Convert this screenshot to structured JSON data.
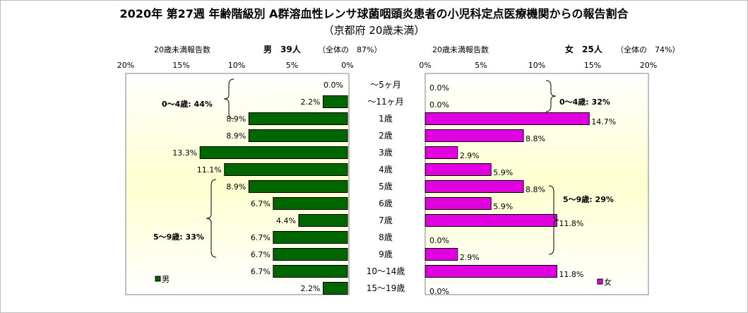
{
  "title": "2020年 第27週 年齢階級別 A群溶血性レンサ球菌咽頭炎患者の小児科定点医療機関からの報告割合",
  "subtitle": "（京都府 20歳未満）",
  "male_header": {
    "count_label": "20歳未満報告数",
    "sex_count": "男　39人",
    "share": "（全体の　87%）"
  },
  "female_header": {
    "count_label": "20歳未満報告数",
    "sex_count": "女　25人",
    "share": "（全体の　74%）"
  },
  "colors": {
    "male": "#006600",
    "female": "#e000e0",
    "plot_center": "#ffffd0",
    "plot_edge": "#ffffff"
  },
  "chart_data": {
    "type": "bar",
    "orientation": "horizontal",
    "categories": [
      "～5ヶ月",
      "～11ヶ月",
      "1歳",
      "2歳",
      "3歳",
      "4歳",
      "5歳",
      "6歳",
      "7歳",
      "8歳",
      "9歳",
      "10～14歳",
      "15～19歳"
    ],
    "series": [
      {
        "name": "男",
        "values": [
          0.0,
          2.2,
          8.9,
          8.9,
          13.3,
          11.1,
          8.9,
          6.7,
          4.4,
          6.7,
          6.7,
          6.7,
          2.2
        ],
        "labels": [
          "0.0%",
          "2.2%",
          "8.9%",
          "8.9%",
          "13.3%",
          "11.1%",
          "8.9%",
          "6.7%",
          "4.4%",
          "6.7%",
          "6.7%",
          "6.7%",
          "2.2%"
        ]
      },
      {
        "name": "女",
        "values": [
          0.0,
          0.0,
          14.7,
          8.8,
          2.9,
          5.9,
          8.8,
          5.9,
          11.8,
          0.0,
          2.9,
          11.8,
          0.0
        ],
        "labels": [
          "0.0%",
          "0.0%",
          "14.7%",
          "8.8%",
          "2.9%",
          "5.9%",
          "8.8%",
          "5.9%",
          "11.8%",
          "0.0%",
          "2.9%",
          "11.8%",
          "0.0%"
        ]
      }
    ],
    "male_axis_ticks": [
      "20%",
      "15%",
      "10%",
      "5%",
      "0%"
    ],
    "female_axis_ticks": [
      "0%",
      "5%",
      "10%",
      "15%",
      "20%"
    ],
    "xlim": [
      0,
      20
    ],
    "grid": false,
    "annotations": {
      "male_0_4": "0～4歳: 44%",
      "male_5_9": "5～9歳: 33%",
      "female_0_4": "0～4歳: 32%",
      "female_5_9": "5～9歳: 29%"
    },
    "legend": {
      "position": "bottom-left-of-each-panel"
    }
  }
}
